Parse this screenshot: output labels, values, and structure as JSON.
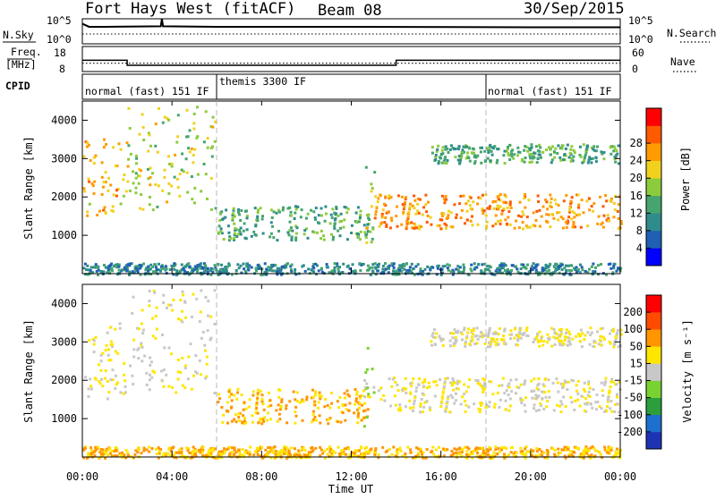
{
  "header": {
    "radar": "Fort Hays West (fitACF)",
    "beam": "Beam 08",
    "date": "30/Sep/2015"
  },
  "sky_panel": {
    "left_label": "N.Sky",
    "left_ticks": [
      "10^5",
      "10^0"
    ],
    "right_ticks": [
      "10^5",
      "10^0"
    ],
    "right_label": "N.Search"
  },
  "freq_panel": {
    "left_label_1": "Freq.",
    "left_label_2": "[MHz]",
    "left_ticks": [
      "18",
      "8"
    ],
    "right_ticks": [
      "60",
      "0"
    ],
    "right_label": "Nave"
  },
  "cpid_panel": {
    "label": "CPID",
    "segments": [
      {
        "name": "normal (fast) 151 IF",
        "start_hour": 0
      },
      {
        "name": "themis 3300 IF",
        "start_hour": 6
      },
      {
        "name": "normal (fast) 151 IF",
        "start_hour": 18
      }
    ]
  },
  "time_axis": {
    "label": "Time UT",
    "ticks": [
      "00:00",
      "04:00",
      "08:00",
      "12:00",
      "16:00",
      "20:00",
      "00:00"
    ],
    "mode_change_hours": [
      6,
      18
    ]
  },
  "power_panel": {
    "ylabel": "Slant Range [km]",
    "yticks": [
      "1000",
      "2000",
      "3000",
      "4000"
    ],
    "colorbar_label": "Power [dB]",
    "colorbar_ticks": [
      "4",
      "8",
      "12",
      "16",
      "20",
      "24",
      "28"
    ],
    "colors": [
      "#0000ff",
      "#1f5fb4",
      "#2f8c8c",
      "#46a56e",
      "#8ccc3c",
      "#f0d21e",
      "#ff9b00",
      "#ff5a00",
      "#ff0000"
    ]
  },
  "velocity_panel": {
    "ylabel": "Slant Range [km]",
    "yticks": [
      "1000",
      "2000",
      "3000",
      "4000"
    ],
    "colorbar_label": "Velocity [m s⁻¹]",
    "colorbar_ticks": [
      "200",
      "100",
      "50",
      "15",
      "-15",
      "-50",
      "-100",
      "-200"
    ],
    "colors": [
      "#1c33b4",
      "#1d6fd0",
      "#2c9e3c",
      "#78d232",
      "#c8c8c8",
      "#ffe600",
      "#ff9600",
      "#ff4b00",
      "#ff0000"
    ]
  },
  "chart_data": {
    "type": "heatmap",
    "x_range_hours": [
      0,
      24
    ],
    "y_range_km": [
      0,
      4500
    ],
    "sky_noise_log10": [
      [
        0,
        4.0
      ],
      [
        0.3,
        3.4
      ],
      [
        1,
        3.4
      ],
      [
        3.5,
        3.5
      ],
      [
        3.55,
        5.0
      ],
      [
        3.6,
        3.5
      ],
      [
        6,
        3.4
      ],
      [
        12,
        3.4
      ],
      [
        20,
        3.3
      ],
      [
        24,
        3.3
      ]
    ],
    "frequency_mhz": [
      {
        "from_hour": 0,
        "to_hour": 2.0,
        "value": 12.5
      },
      {
        "from_hour": 2.0,
        "to_hour": 14.0,
        "value": 10.5
      },
      {
        "from_hour": 14.0,
        "to_hour": 24,
        "value": 12.5
      }
    ],
    "nave": [
      {
        "from_hour": 0,
        "to_hour": 24,
        "value": 20
      }
    ],
    "scatter_features": [
      {
        "name": "early streak 1",
        "hours": [
          0.0,
          2.0
        ],
        "range_km": [
          1500,
          3600
        ],
        "power_db": 24,
        "velocity": -15
      },
      {
        "name": "early streak 2",
        "hours": [
          2.0,
          5.9
        ],
        "range_km": [
          1700,
          4400
        ],
        "power_db": 20,
        "velocity": -15
      },
      {
        "name": "midday band",
        "hours": [
          6.0,
          12.8
        ],
        "range_km": [
          900,
          1800
        ],
        "power_db": 14,
        "velocity": -50
      },
      {
        "name": "spike",
        "hours": [
          12.5,
          13.0
        ],
        "range_km": [
          800,
          3000
        ],
        "power_db": 20,
        "velocity": 15
      },
      {
        "name": "afternoon band",
        "hours": [
          13.0,
          24.0
        ],
        "range_km": [
          1200,
          2100
        ],
        "power_db": 26,
        "velocity": -15
      },
      {
        "name": "upper band",
        "hours": [
          15.5,
          24.0
        ],
        "range_km": [
          2900,
          3400
        ],
        "power_db": 14,
        "velocity": -15
      },
      {
        "name": "near range",
        "hours": [
          0.0,
          24.0
        ],
        "range_km": [
          0,
          300
        ],
        "power_db": 10,
        "velocity": -50
      }
    ]
  }
}
